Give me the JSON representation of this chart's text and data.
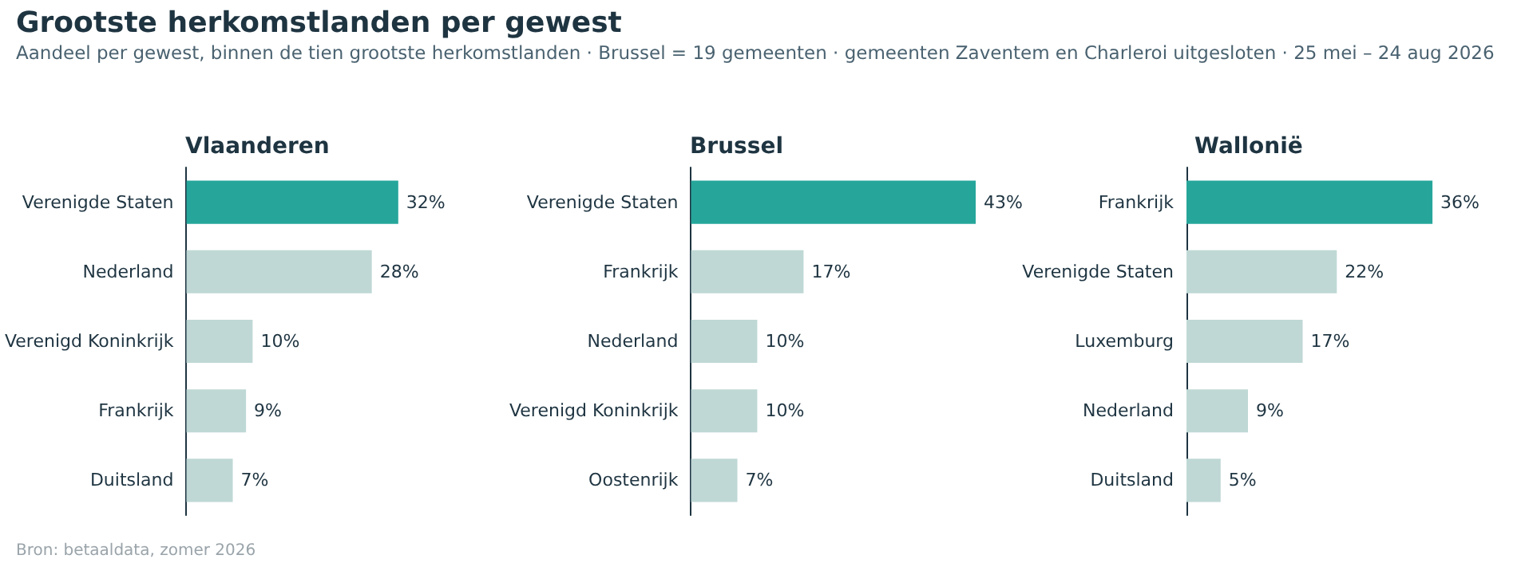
{
  "chart_data": [
    {
      "type": "other",
      "title": "Grootste herkomstlanden per gewest",
      "subtitle": "Aandeel per gewest, binnen de tien grootste herkomstlanden · Brussel = 19 gemeenten · gemeenten Zaventem en Charleroi uitgesloten · 25 mei – 24 aug 2026",
      "annotations": [
        "Bron: betaaldata, zomer 2026"
      ]
    },
    {
      "type": "bar",
      "orientation": "horizontal",
      "title": "Vlaanderen",
      "categories": [
        "Verenigde Staten",
        "Nederland",
        "Verenigd Koninkrijk",
        "Frankrijk",
        "Duitsland"
      ],
      "values": [
        32,
        28,
        10,
        9,
        7
      ],
      "value_labels": [
        "32%",
        "28%",
        "10%",
        "9%",
        "7%"
      ],
      "colors": [
        "#26a69a",
        "#bfd8d5",
        "#bfd8d5",
        "#bfd8d5",
        "#bfd8d5"
      ]
    },
    {
      "type": "bar",
      "orientation": "horizontal",
      "title": "Brussel",
      "categories": [
        "Verenigde Staten",
        "Frankrijk",
        "Nederland",
        "Verenigd Koninkrijk",
        "Oostenrijk"
      ],
      "values": [
        43,
        17,
        10,
        10,
        7
      ],
      "value_labels": [
        "43%",
        "17%",
        "10%",
        "10%",
        "7%"
      ],
      "colors": [
        "#26a69a",
        "#bfd8d5",
        "#bfd8d5",
        "#bfd8d5",
        "#bfd8d5"
      ]
    },
    {
      "type": "bar",
      "orientation": "horizontal",
      "title": "Wallonië",
      "categories": [
        "Frankrijk",
        "Verenigde Staten",
        "Luxemburg",
        "Nederland",
        "Duitsland"
      ],
      "values": [
        36,
        22,
        17,
        9,
        5
      ],
      "value_labels": [
        "36%",
        "22%",
        "17%",
        "9%",
        "5%"
      ],
      "colors": [
        "#26a69a",
        "#bfd8d5",
        "#bfd8d5",
        "#bfd8d5",
        "#bfd8d5"
      ]
    }
  ]
}
